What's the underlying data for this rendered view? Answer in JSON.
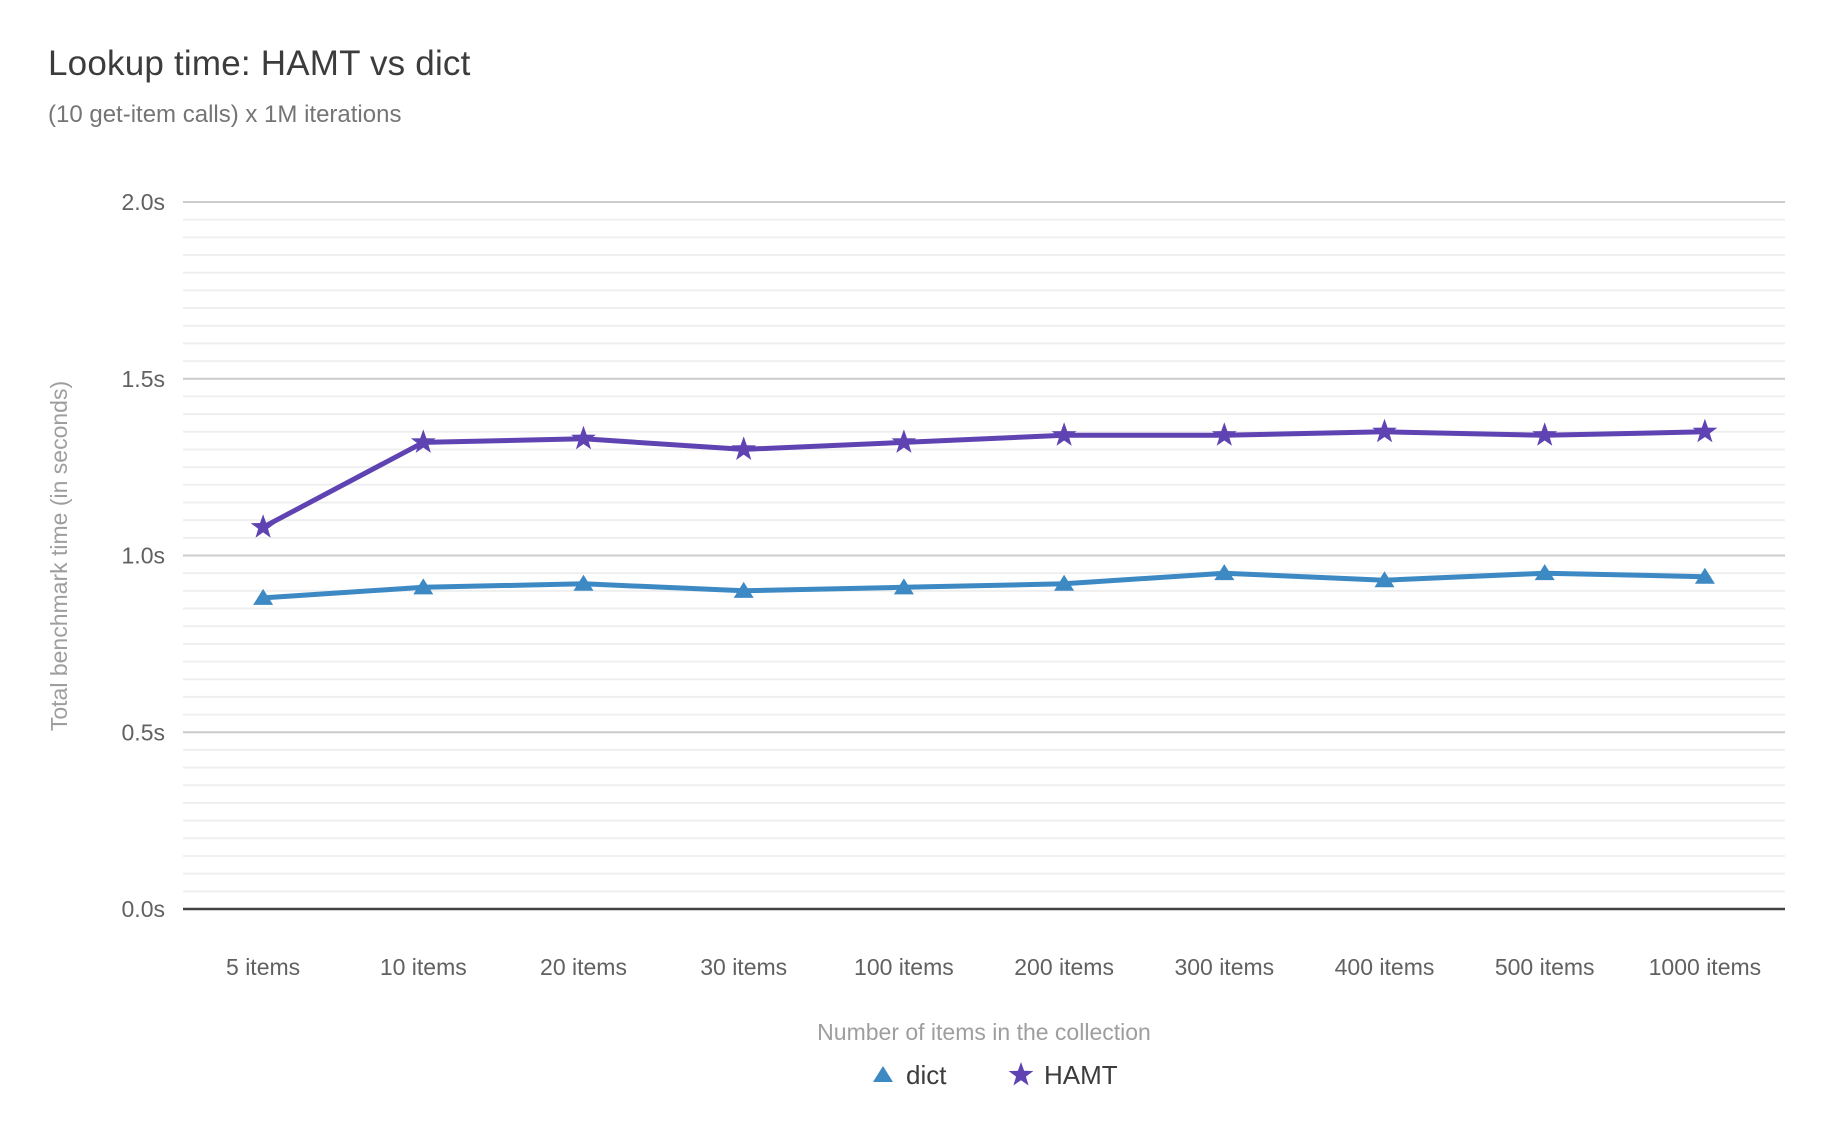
{
  "header": {
    "title": "Lookup time: HAMT vs dict",
    "subtitle": "(10 get-item calls) x 1M iterations"
  },
  "chart_data": {
    "type": "line",
    "title": "Lookup time: HAMT vs dict",
    "subtitle": "(10 get-item calls) x 1M iterations",
    "xlabel": "Number of items in the collection",
    "ylabel": "Total benchmark time (in seconds)",
    "categories": [
      "5 items",
      "10 items",
      "20 items",
      "30 items",
      "100 items",
      "200 items",
      "300 items",
      "400 items",
      "500 items",
      "1000 items"
    ],
    "series": [
      {
        "name": "dict",
        "marker": "triangle",
        "color": "#3d89c4",
        "values": [
          0.88,
          0.91,
          0.92,
          0.9,
          0.91,
          0.92,
          0.95,
          0.93,
          0.95,
          0.94
        ]
      },
      {
        "name": "HAMT",
        "marker": "star",
        "color": "#5f43b2",
        "values": [
          1.08,
          1.32,
          1.33,
          1.3,
          1.32,
          1.34,
          1.34,
          1.35,
          1.34,
          1.35
        ]
      }
    ],
    "ylim": [
      0.0,
      2.0
    ],
    "yticks": [
      {
        "value": 0.0,
        "label": "0.0s"
      },
      {
        "value": 0.5,
        "label": "0.5s"
      },
      {
        "value": 1.0,
        "label": "1.0s"
      },
      {
        "value": 1.5,
        "label": "1.5s"
      },
      {
        "value": 2.0,
        "label": "2.0s"
      }
    ],
    "minor_step": 0.05,
    "grid": true,
    "legend_position": "bottom"
  },
  "style_colors": {
    "major_grid": "#cccccc",
    "minor_grid": "#efefef",
    "axis_line": "#424242",
    "tick_label": "#616161",
    "axis_title": "#9e9e9e",
    "legend_label": "#3c3c3c"
  }
}
